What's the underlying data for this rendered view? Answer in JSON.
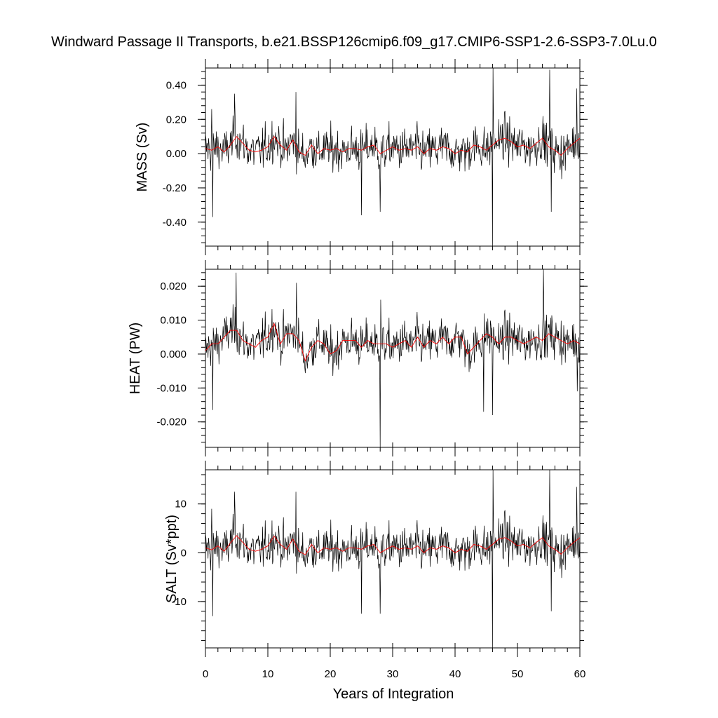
{
  "chart_data": {
    "type": "line",
    "title": "Windward Passage II Transports, b.e21.BSSP126cmip6.f09_g17.CMIP6-SSP1-2.6-SSP3-7.0Lu.0",
    "xlabel": "Years of Integration",
    "xlim": [
      0,
      60
    ],
    "x_ticks": [
      0,
      10,
      20,
      30,
      40,
      50,
      60
    ],
    "x_tick_labels": [
      "0",
      "10",
      "20",
      "30",
      "40",
      "50",
      "60"
    ],
    "line_colors": {
      "monthly": "#000000",
      "annual_mean": "#ff0000"
    },
    "panels": [
      {
        "ylabel": "MASS (Sv)",
        "ylim": [
          -0.54,
          0.5
        ],
        "y_ticks": [
          0.4,
          0.2,
          0.0,
          -0.2,
          -0.4
        ],
        "y_tick_labels": [
          "0.40",
          "0.20",
          "0.00",
          "-0.20",
          "-0.40"
        ],
        "annual_mean": [
          0.03,
          0.02,
          0.04,
          0.01,
          0.05,
          0.1,
          0.06,
          0.02,
          0.01,
          0.02,
          0.04,
          0.1,
          0.05,
          0.02,
          0.08,
          0.01,
          -0.01,
          0.05,
          0.0,
          0.03,
          0.02,
          0.03,
          0.01,
          0.03,
          0.03,
          0.02,
          0.04,
          0.05,
          0.0,
          0.02,
          0.04,
          0.02,
          0.03,
          0.02,
          0.04,
          0.0,
          0.03,
          0.02,
          0.04,
          0.03,
          0.0,
          0.02,
          0.01,
          0.05,
          0.04,
          0.02,
          0.05,
          0.08,
          0.09,
          0.07,
          0.04,
          0.05,
          0.03,
          0.06,
          0.09,
          0.04,
          0.02,
          -0.01,
          0.03,
          0.06,
          0.09
        ],
        "spikes": [
          [
            1.2,
            -0.37
          ],
          [
            1.0,
            0.26
          ],
          [
            25.0,
            -0.36
          ],
          [
            28.0,
            -0.34
          ],
          [
            46.0,
            -0.54
          ],
          [
            46.1,
            0.5
          ],
          [
            55.2,
            0.49
          ],
          [
            55.4,
            -0.34
          ],
          [
            59.5,
            0.38
          ],
          [
            14.5,
            0.36
          ],
          [
            4.7,
            0.35
          ]
        ]
      },
      {
        "ylabel": "HEAT (PW)",
        "ylim": [
          -0.0275,
          0.025
        ],
        "y_ticks": [
          0.02,
          0.01,
          0.0,
          -0.01,
          -0.02
        ],
        "y_tick_labels": [
          "0.020",
          "0.010",
          "0.000",
          "-0.010",
          "-0.020"
        ],
        "annual_mean": [
          0.001,
          0.003,
          0.003,
          0.005,
          0.007,
          0.007,
          0.004,
          0.003,
          0.002,
          0.004,
          0.005,
          0.009,
          0.003,
          0.006,
          0.006,
          0.004,
          -0.002,
          0.002,
          0.004,
          0.003,
          0.0,
          0.001,
          0.004,
          0.004,
          0.004,
          0.002,
          0.004,
          0.003,
          0.003,
          0.003,
          0.002,
          0.003,
          0.004,
          0.002,
          0.005,
          0.002,
          0.004,
          0.003,
          0.005,
          0.003,
          0.005,
          0.005,
          0.0,
          0.002,
          0.004,
          0.006,
          0.005,
          0.003,
          0.005,
          0.005,
          0.004,
          0.003,
          0.004,
          0.005,
          0.004,
          0.006,
          0.005,
          0.004,
          0.003,
          0.004,
          0.003
        ],
        "spikes": [
          [
            1.2,
            -0.0165
          ],
          [
            4.9,
            0.024
          ],
          [
            14.6,
            0.021
          ],
          [
            28.0,
            -0.0275
          ],
          [
            28.1,
            0.016
          ],
          [
            44.6,
            -0.017
          ],
          [
            46.0,
            -0.018
          ],
          [
            54.2,
            0.025
          ],
          [
            59.6,
            -0.011
          ]
        ]
      },
      {
        "ylabel": "SALT (Sv*ppt)",
        "ylim": [
          -19.5,
          17
        ],
        "y_ticks": [
          10,
          0,
          -10
        ],
        "y_tick_labels": [
          "10",
          "0",
          "-10"
        ],
        "annual_mean": [
          1.0,
          0.6,
          1.4,
          0.3,
          2.0,
          3.5,
          2.1,
          0.7,
          0.3,
          0.7,
          1.4,
          3.4,
          1.7,
          0.7,
          2.8,
          0.3,
          -0.4,
          1.7,
          0.0,
          1.0,
          0.7,
          1.0,
          0.3,
          1.0,
          1.0,
          0.7,
          1.4,
          1.7,
          0.0,
          0.7,
          1.4,
          0.7,
          1.0,
          0.7,
          1.4,
          0.0,
          1.0,
          0.7,
          1.4,
          1.0,
          0.0,
          0.7,
          0.3,
          1.7,
          1.4,
          0.7,
          1.7,
          2.8,
          3.1,
          2.4,
          1.4,
          1.7,
          1.0,
          2.1,
          3.1,
          1.4,
          0.7,
          -0.3,
          1.0,
          2.1,
          3.1
        ],
        "spikes": [
          [
            1.2,
            -13
          ],
          [
            1.0,
            9
          ],
          [
            25.0,
            -12.5
          ],
          [
            28.0,
            -12.5
          ],
          [
            46.0,
            -19.5
          ],
          [
            46.1,
            17
          ],
          [
            55.2,
            17
          ],
          [
            55.4,
            -12
          ],
          [
            59.5,
            13.5
          ],
          [
            14.5,
            12.5
          ],
          [
            4.7,
            12.5
          ]
        ]
      }
    ]
  }
}
